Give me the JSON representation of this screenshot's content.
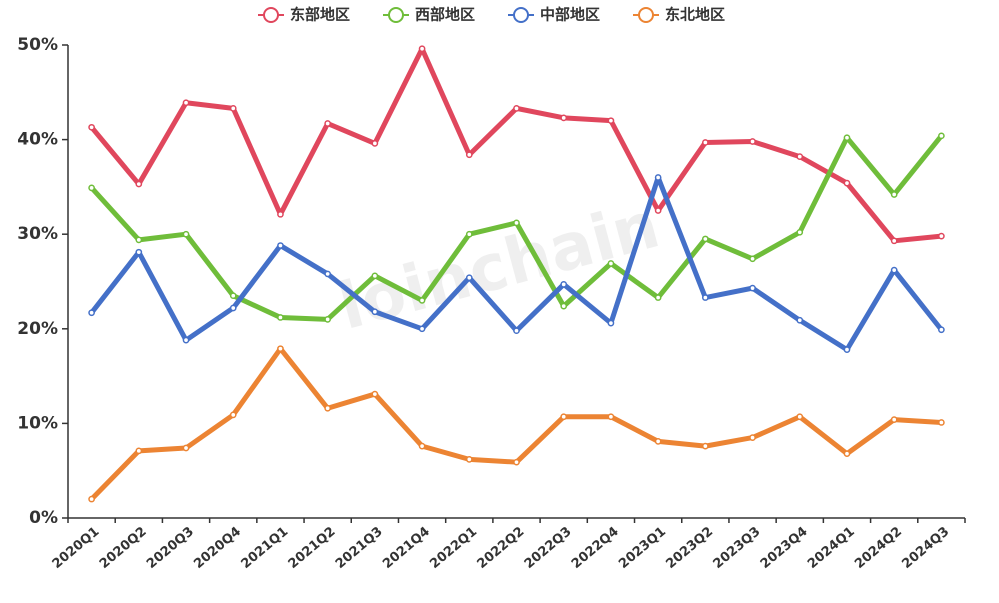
{
  "chart_data": {
    "type": "line",
    "watermark": "loinchain",
    "categories": [
      "2020Q1",
      "2020Q2",
      "2020Q3",
      "2020Q4",
      "2021Q1",
      "2021Q2",
      "2021Q3",
      "2021Q4",
      "2022Q1",
      "2022Q2",
      "2022Q3",
      "2022Q4",
      "2023Q1",
      "2023Q2",
      "2023Q3",
      "2023Q4",
      "2024Q1",
      "2024Q2",
      "2024Q3"
    ],
    "series": [
      {
        "name": "东部地区",
        "color": "#e0475d",
        "values": [
          41.3,
          35.3,
          43.9,
          43.3,
          32.1,
          41.7,
          39.6,
          49.6,
          38.4,
          43.3,
          42.3,
          42.0,
          32.5,
          39.7,
          39.8,
          38.2,
          35.4,
          29.3,
          29.8
        ]
      },
      {
        "name": "西部地区",
        "color": "#6fbd3a",
        "values": [
          34.9,
          29.4,
          30.0,
          23.5,
          21.2,
          21.0,
          25.6,
          23.0,
          30.0,
          31.2,
          22.4,
          26.9,
          23.3,
          29.5,
          27.4,
          30.2,
          40.2,
          34.2,
          40.4
        ]
      },
      {
        "name": "中部地区",
        "color": "#4470c8",
        "values": [
          21.7,
          28.1,
          18.8,
          22.2,
          28.8,
          25.8,
          21.8,
          20.0,
          25.4,
          19.8,
          24.7,
          20.6,
          36.0,
          23.3,
          24.3,
          20.9,
          17.8,
          26.2,
          19.9
        ]
      },
      {
        "name": "东北地区",
        "color": "#ec8433",
        "values": [
          2.0,
          7.1,
          7.4,
          10.9,
          17.9,
          11.6,
          13.1,
          7.6,
          6.2,
          5.9,
          10.7,
          10.7,
          8.1,
          7.6,
          8.5,
          10.7,
          6.8,
          10.4,
          10.1
        ]
      }
    ],
    "ylim": [
      0,
      50
    ],
    "yticks": [
      {
        "value": 0,
        "label": "0%"
      },
      {
        "value": 10,
        "label": "10%"
      },
      {
        "value": 20,
        "label": "20%"
      },
      {
        "value": 30,
        "label": "30%"
      },
      {
        "value": 40,
        "label": "40%"
      },
      {
        "value": 50,
        "label": "50%"
      }
    ],
    "legend": "top"
  }
}
